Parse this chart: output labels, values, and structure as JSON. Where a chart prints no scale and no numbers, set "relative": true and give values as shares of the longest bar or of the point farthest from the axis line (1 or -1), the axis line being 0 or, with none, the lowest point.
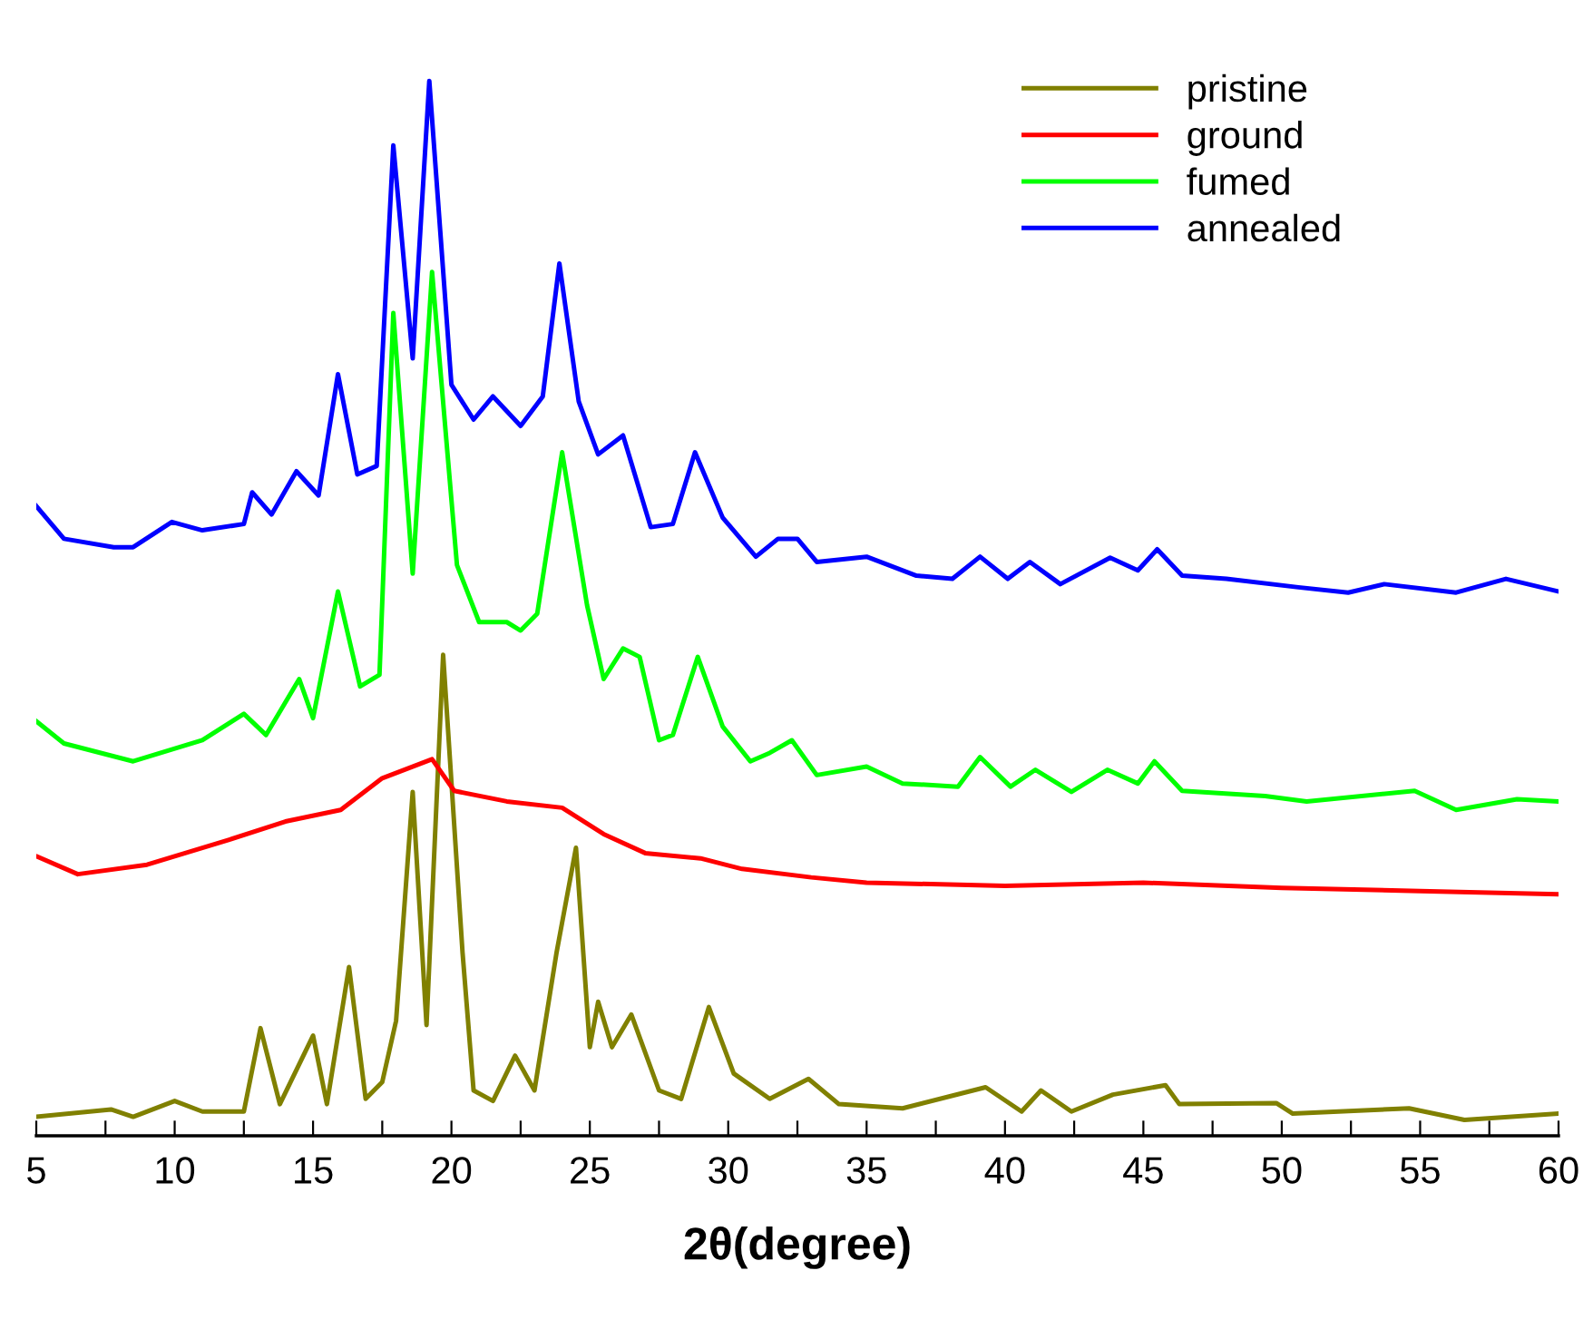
{
  "chart_data": {
    "type": "line",
    "relative": true,
    "xlabel": "2θ(degree)",
    "xlim": [
      5,
      60
    ],
    "xticks": [
      5,
      {
        "value": 7.5,
        "label": null
      },
      10,
      {
        "value": 12.5,
        "label": null
      },
      15,
      {
        "value": 17.5,
        "label": null
      },
      20,
      {
        "value": 22.5,
        "label": null
      },
      25,
      {
        "value": 27.5,
        "label": null
      },
      30,
      {
        "value": 32.5,
        "label": null
      },
      35,
      {
        "value": 37.5,
        "label": null
      },
      40,
      {
        "value": 42.5,
        "label": null
      },
      45,
      {
        "value": 47.5,
        "label": null
      },
      50,
      {
        "value": 52.5,
        "label": null
      },
      55,
      {
        "value": 57.5,
        "label": null
      },
      60
    ],
    "tick_labels": "x",
    "legend": "top right",
    "grid": false,
    "series": [
      {
        "name": "pristine",
        "color": "#808000",
        "x": [
          5,
          7.7,
          8.5,
          10,
          11,
          12.5,
          13.1,
          13.8,
          15.0,
          15.5,
          16.3,
          16.9,
          17.5,
          18.0,
          18.6,
          19.1,
          19.7,
          20.4,
          20.8,
          21.5,
          22.3,
          23.0,
          23.8,
          24.5,
          25.0,
          25.3,
          25.8,
          26.5,
          27.5,
          28.3,
          29.3,
          30.2,
          31.5,
          32.9,
          34.0,
          36.3,
          39.3,
          40.6,
          41.3,
          42.4,
          43.9,
          45.8,
          46.3,
          49.8,
          50.4,
          54.6,
          56.6,
          60
        ],
        "values": [
          0.018,
          0.025,
          0.018,
          0.033,
          0.023,
          0.023,
          0.102,
          0.03,
          0.095,
          0.03,
          0.16,
          0.035,
          0.051,
          0.109,
          0.326,
          0.105,
          0.456,
          0.174,
          0.043,
          0.033,
          0.076,
          0.043,
          0.174,
          0.273,
          0.084,
          0.127,
          0.084,
          0.115,
          0.043,
          0.035,
          0.122,
          0.059,
          0.035,
          0.054,
          0.03,
          0.026,
          0.046,
          0.023,
          0.043,
          0.023,
          0.039,
          0.048,
          0.03,
          0.031,
          0.021,
          0.026,
          0.015,
          0.021
        ]
      },
      {
        "name": "ground",
        "color": "#ff0000",
        "x": [
          5,
          6.5,
          9,
          12,
          14,
          16,
          17.5,
          19.3,
          20.1,
          22,
          24.0,
          25.5,
          27,
          29,
          30.5,
          33,
          35,
          40,
          45,
          50,
          55,
          60
        ],
        "values": [
          0.265,
          0.248,
          0.257,
          0.281,
          0.298,
          0.309,
          0.339,
          0.357,
          0.327,
          0.317,
          0.311,
          0.286,
          0.268,
          0.263,
          0.253,
          0.245,
          0.24,
          0.237,
          0.24,
          0.235,
          0.232,
          0.229
        ]
      },
      {
        "name": "fumed",
        "color": "#00ff00",
        "x": [
          5,
          6,
          8.5,
          11,
          12.5,
          13.3,
          14.5,
          15,
          15.9,
          16.7,
          17.4,
          17.9,
          18.6,
          19.3,
          20.2,
          21,
          22,
          22.5,
          23.1,
          24.0,
          24.9,
          25.5,
          26.2,
          26.8,
          27.5,
          28.0,
          28.9,
          29.8,
          30.8,
          31.5,
          32.3,
          33.2,
          35,
          36.3,
          38.3,
          39.1,
          40.2,
          41.1,
          42.4,
          43.7,
          44.8,
          45.4,
          46.4,
          49.4,
          50.9,
          54.8,
          56.3,
          58.5,
          60
        ],
        "values": [
          0.393,
          0.372,
          0.355,
          0.375,
          0.4,
          0.38,
          0.433,
          0.396,
          0.516,
          0.426,
          0.437,
          0.78,
          0.533,
          0.819,
          0.541,
          0.487,
          0.487,
          0.479,
          0.495,
          0.648,
          0.503,
          0.433,
          0.462,
          0.454,
          0.375,
          0.38,
          0.454,
          0.388,
          0.355,
          0.363,
          0.375,
          0.342,
          0.35,
          0.334,
          0.331,
          0.359,
          0.331,
          0.347,
          0.326,
          0.347,
          0.334,
          0.355,
          0.327,
          0.322,
          0.317,
          0.327,
          0.309,
          0.319,
          0.317
        ]
      },
      {
        "name": "annealed",
        "color": "#0000ff",
        "x": [
          5,
          6,
          7.8,
          8.5,
          9.9,
          11,
          12.5,
          12.8,
          13.5,
          14.4,
          15.2,
          15.9,
          16.6,
          17.3,
          17.9,
          18.6,
          19.2,
          20.0,
          20.8,
          21.5,
          22.5,
          23.3,
          23.9,
          24.6,
          25.3,
          26.2,
          27.2,
          28.0,
          28.8,
          29.8,
          31.0,
          31.8,
          32.5,
          33.2,
          35,
          36.8,
          38.1,
          39.1,
          40.1,
          40.9,
          42.0,
          43.8,
          44.8,
          45.5,
          46.4,
          48.0,
          50.6,
          52.4,
          53.7,
          56.3,
          58.1,
          60
        ],
        "values": [
          0.597,
          0.566,
          0.558,
          0.558,
          0.582,
          0.574,
          0.58,
          0.61,
          0.589,
          0.63,
          0.607,
          0.722,
          0.627,
          0.635,
          0.939,
          0.737,
          1.0,
          0.712,
          0.679,
          0.701,
          0.673,
          0.701,
          0.827,
          0.696,
          0.646,
          0.664,
          0.577,
          0.58,
          0.648,
          0.586,
          0.549,
          0.566,
          0.566,
          0.544,
          0.549,
          0.531,
          0.528,
          0.549,
          0.528,
          0.544,
          0.523,
          0.548,
          0.536,
          0.556,
          0.531,
          0.528,
          0.52,
          0.515,
          0.523,
          0.515,
          0.528,
          0.516
        ]
      }
    ]
  }
}
